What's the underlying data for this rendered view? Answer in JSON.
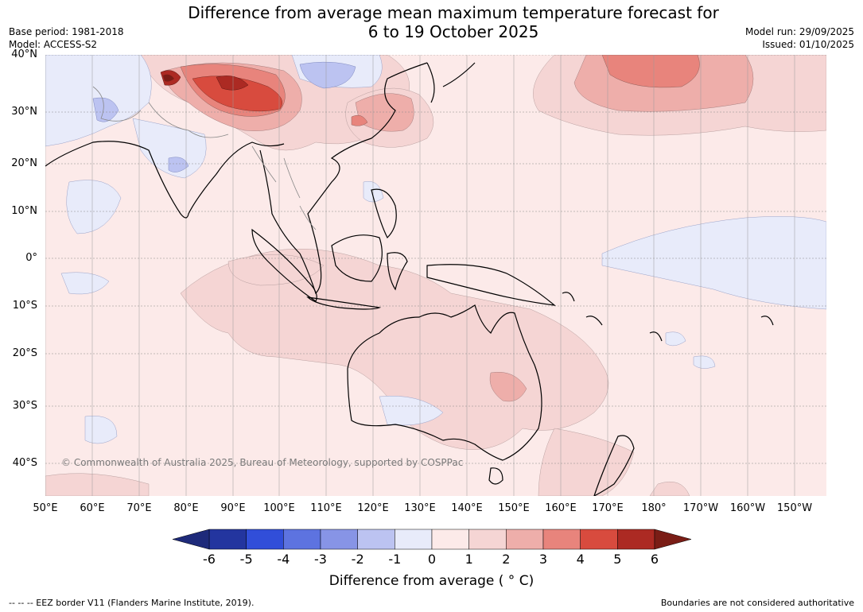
{
  "title_line1": "Difference from average mean maximum temperature forecast for",
  "title_line2": "6 to 19 October 2025",
  "base_period": "Base period: 1981-2018",
  "model": "Model: ACCESS-S2",
  "model_run": "Model run: 29/09/2025",
  "issued": "Issued: 01/10/2025",
  "copyright": "© Commonwealth of Australia 2025, Bureau of Meteorology, supported by COSPPac",
  "lat_labels": [
    "40°N",
    "30°N",
    "20°N",
    "10°N",
    "0°",
    "10°S",
    "20°S",
    "30°S",
    "40°S"
  ],
  "lon_labels": [
    "50°E",
    "60°E",
    "70°E",
    "80°E",
    "90°E",
    "100°E",
    "110°E",
    "120°E",
    "130°E",
    "140°E",
    "150°E",
    "160°E",
    "170°E",
    "180°",
    "170°W",
    "160°W",
    "150°W"
  ],
  "colorbar": {
    "ticks": [
      "-6",
      "-5",
      "-4",
      "-3",
      "-2",
      "-1",
      "0",
      "1",
      "2",
      "3",
      "4",
      "5",
      "6"
    ],
    "colors": [
      "#23359f",
      "#314ed9",
      "#5d73e0",
      "#8794e6",
      "#bcc3f1",
      "#e8ebfa",
      "#fceae9",
      "#f5d5d4",
      "#eeaeaa",
      "#e8847c",
      "#d84b3e",
      "#ac2a23"
    ],
    "under_color": "#1e2a7a",
    "over_color": "#7a1d16",
    "label": "Difference from average ( ° C)"
  },
  "eez_note": "--  --  -- EEZ border V11 (Flanders Marine Institute, 2019).",
  "boundaries_note": "Boundaries are not considered authoritative"
}
